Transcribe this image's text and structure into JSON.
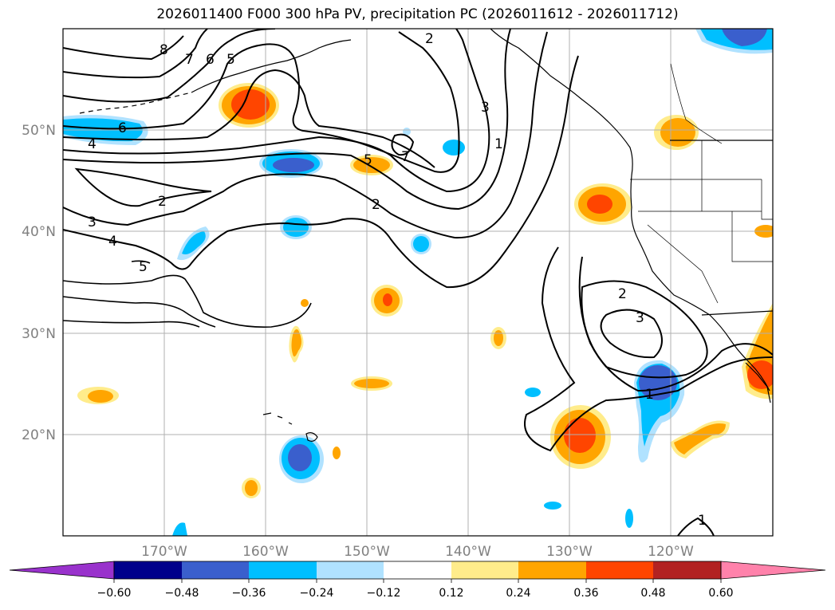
{
  "title": "2026011400 F000 300 hPa PV, precipitation PC (2026011612 - 2026011712)",
  "map": {
    "lon_range": [
      -180,
      -110
    ],
    "lat_range": [
      10,
      60
    ],
    "lat_labels": [
      "50°N",
      "40°N",
      "30°N",
      "20°N"
    ],
    "lon_labels": [
      "170°W",
      "160°W",
      "150°W",
      "140°W",
      "130°W",
      "120°W"
    ]
  },
  "contour_labels": [
    "8",
    "7",
    "6",
    "5",
    "6",
    "4",
    "2",
    "3",
    "4",
    "5",
    "5",
    "7",
    "2",
    "2",
    "3",
    "1",
    "2",
    "3",
    "1",
    "1"
  ],
  "colorbar": {
    "ticks": [
      "−0.60",
      "−0.48",
      "−0.36",
      "−0.24",
      "−0.12",
      "0.12",
      "0.24",
      "0.36",
      "0.48",
      "0.60"
    ],
    "colors": [
      "#9932cc",
      "#00008b",
      "#3a5fcd",
      "#00bfff",
      "#b0e2ff",
      "#ffffff",
      "#ffec8b",
      "#ffa500",
      "#ff4500",
      "#b22222",
      "#ff82ab"
    ]
  }
}
